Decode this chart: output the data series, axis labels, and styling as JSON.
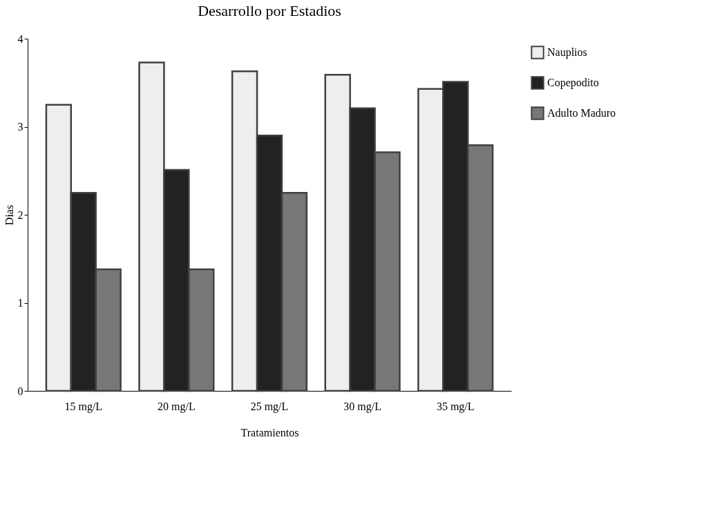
{
  "chart_data": {
    "type": "bar",
    "title": "Desarrollo por Estadios",
    "xlabel": "Tratamientos",
    "ylabel": "Dias",
    "categories": [
      "15 mg/L",
      "20 mg/L",
      "25 mg/L",
      "30 mg/L",
      "35 mg/L"
    ],
    "series": [
      {
        "name": "Nauplios",
        "color": "#eeeeee",
        "values": [
          3.25,
          3.73,
          3.63,
          3.59,
          3.43
        ]
      },
      {
        "name": "Copepodito",
        "color": "#222222",
        "values": [
          2.25,
          2.51,
          2.9,
          3.21,
          3.51
        ]
      },
      {
        "name": "Adulto Maduro",
        "color": "#777777",
        "values": [
          1.38,
          1.38,
          2.25,
          2.71,
          2.79
        ]
      }
    ],
    "ylim": [
      0,
      4
    ],
    "yticks": [
      0,
      1,
      2,
      3,
      4
    ],
    "grid": false,
    "legend": "right"
  }
}
